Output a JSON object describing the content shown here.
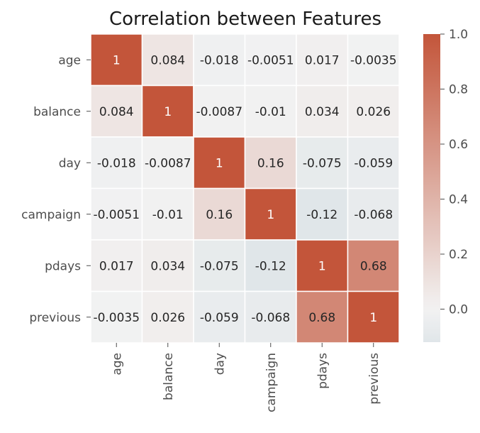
{
  "chart_data": {
    "type": "heatmap",
    "title": "Correlation between Features",
    "rows": [
      "age",
      "balance",
      "day",
      "campaign",
      "pdays",
      "previous"
    ],
    "cols": [
      "age",
      "balance",
      "day",
      "campaign",
      "pdays",
      "previous"
    ],
    "values": [
      [
        1,
        0.084,
        -0.018,
        -0.0051,
        0.017,
        -0.0035
      ],
      [
        0.084,
        1,
        -0.0087,
        -0.01,
        0.034,
        0.026
      ],
      [
        -0.018,
        -0.0087,
        1,
        0.16,
        -0.075,
        -0.059
      ],
      [
        -0.0051,
        -0.01,
        0.16,
        1,
        -0.12,
        -0.068
      ],
      [
        0.017,
        0.034,
        -0.075,
        -0.12,
        1,
        0.68
      ],
      [
        -0.0035,
        0.026,
        -0.059,
        -0.068,
        0.68,
        1
      ]
    ],
    "annotations": [
      [
        "1",
        "0.084",
        "-0.018",
        "-0.0051",
        "0.017",
        "-0.0035"
      ],
      [
        "0.084",
        "1",
        "-0.0087",
        "-0.01",
        "0.034",
        "0.026"
      ],
      [
        "-0.018",
        "-0.0087",
        "1",
        "0.16",
        "-0.075",
        "-0.059"
      ],
      [
        "-0.0051",
        "-0.01",
        "0.16",
        "1",
        "-0.12",
        "-0.068"
      ],
      [
        "0.017",
        "0.034",
        "-0.075",
        "-0.12",
        "1",
        "0.68"
      ],
      [
        "-0.0035",
        "0.026",
        "-0.059",
        "-0.068",
        "0.68",
        "1"
      ]
    ],
    "colorbar": {
      "range": [
        -0.12,
        1.0
      ],
      "ticks": [
        0.0,
        0.2,
        0.4,
        0.6,
        0.8,
        1.0
      ],
      "tick_labels": [
        "0.0",
        "0.2",
        "0.4",
        "0.6",
        "0.8",
        "1.0"
      ],
      "center": 0,
      "color_low": "#e0e6e9",
      "color_center": "#f2f2f2",
      "color_high": "#c3553a"
    },
    "grid": false,
    "legend": "colorbar-right"
  }
}
